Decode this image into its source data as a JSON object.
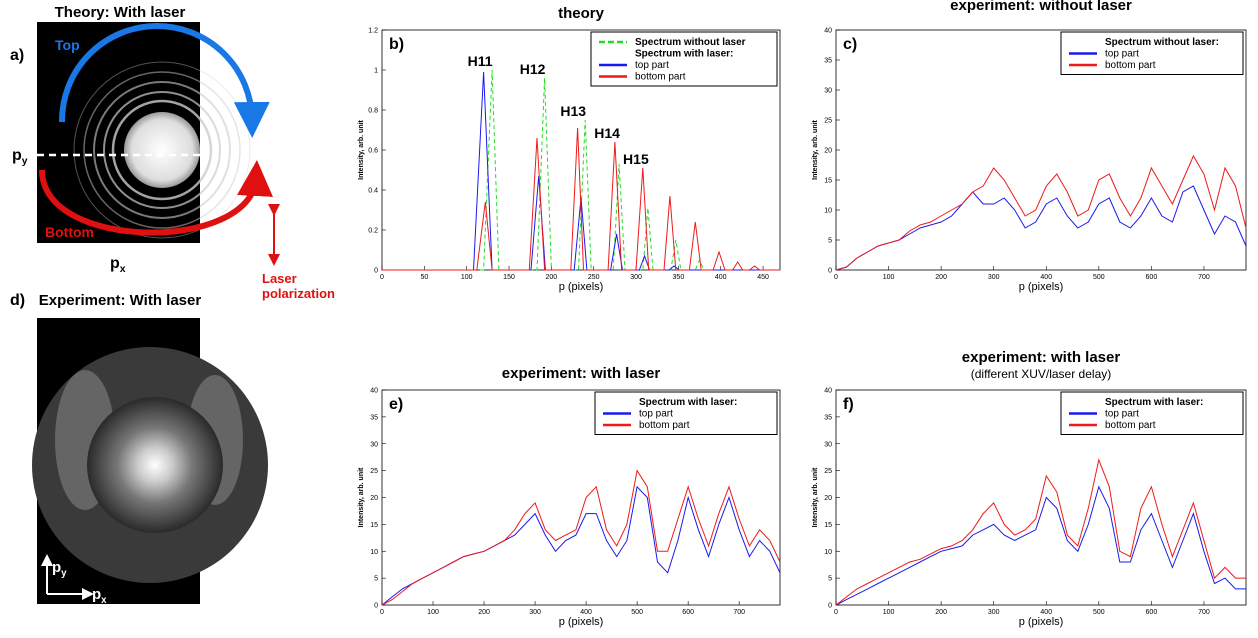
{
  "images": [
    {
      "label": "a)",
      "title": "Theory: With laser",
      "top": "Top",
      "bottom": "Bottom",
      "py": {
        "base": "p",
        "sub": "y"
      },
      "px": {
        "base": "p",
        "sub": "x"
      },
      "polarization": [
        "Laser",
        "polarization"
      ]
    },
    {
      "label": "d)",
      "title": "Experiment: With laser",
      "py": {
        "base": "p",
        "sub": "y"
      },
      "px": {
        "base": "p",
        "sub": "x"
      }
    }
  ],
  "chart_data": [
    {
      "type": "line",
      "panel_label": "b)",
      "title": "theory",
      "xlabel": "p (pixels)",
      "ylabel": "Intensity, arb. unit",
      "xlim": [
        0,
        470
      ],
      "xticks": [
        0,
        50,
        100,
        150,
        200,
        250,
        300,
        350,
        400,
        450
      ],
      "ylim": [
        0,
        1.2
      ],
      "yticks": [
        0,
        0.2,
        0.4,
        0.6,
        0.8,
        1,
        1.2
      ],
      "legend_title": "Spectrum with laser:",
      "annotations": [
        "H11",
        "H12",
        "H13",
        "H14",
        "H15"
      ],
      "series": [
        {
          "name": "Spectrum without laser",
          "color": "#22dd22",
          "linestyle": "dashed",
          "x": [
            0,
            120,
            130,
            138,
            183,
            192,
            200,
            232,
            240,
            247,
            273,
            280,
            287,
            308,
            314,
            320,
            341,
            347,
            353,
            370,
            375,
            380,
            470
          ],
          "values": [
            0,
            0,
            1.0,
            0,
            0,
            0.96,
            0,
            0,
            0.75,
            0,
            0,
            0.53,
            0,
            0,
            0.31,
            0,
            0,
            0.15,
            0,
            0,
            0.05,
            0,
            0
          ]
        },
        {
          "name": "top part",
          "color": "#1a1aee",
          "linestyle": "solid",
          "x": [
            0,
            108,
            120,
            130,
            176,
            185,
            193,
            227,
            235,
            242,
            270,
            277,
            284,
            304,
            310,
            316,
            339,
            345,
            351,
            470
          ],
          "values": [
            0,
            0,
            0.99,
            0,
            0,
            0.47,
            0,
            0,
            0.36,
            0,
            0,
            0.18,
            0,
            0,
            0.07,
            0,
            0,
            0.02,
            0,
            0
          ]
        },
        {
          "name": "bottom part",
          "color": "#ee1a1a",
          "linestyle": "solid",
          "x": [
            0,
            112,
            122,
            130,
            174,
            183,
            192,
            223,
            231,
            238,
            267,
            275,
            283,
            300,
            308,
            315,
            333,
            340,
            347,
            363,
            370,
            377,
            391,
            398,
            405,
            414,
            420,
            426,
            434,
            440,
            446,
            470
          ],
          "values": [
            0,
            0,
            0.34,
            0,
            0,
            0.66,
            0,
            0,
            0.71,
            0,
            0,
            0.64,
            0,
            0,
            0.51,
            0,
            0,
            0.37,
            0,
            0,
            0.24,
            0,
            0,
            0.09,
            0,
            0,
            0.04,
            0,
            0,
            0.02,
            0,
            0
          ]
        }
      ]
    },
    {
      "type": "line",
      "panel_label": "c)",
      "title": "experiment: without laser",
      "xlabel": "p (pixels)",
      "ylabel": "Intensity, arb. unit",
      "xlim": [
        0,
        780
      ],
      "xticks": [
        0,
        100,
        200,
        300,
        400,
        500,
        600,
        700
      ],
      "ylim": [
        0,
        40
      ],
      "yticks": [
        0,
        5,
        10,
        15,
        20,
        25,
        30,
        35,
        40
      ],
      "legend_title": "Spectrum without laser:",
      "series": [
        {
          "name": "top part",
          "color": "#1a1aee",
          "linestyle": "solid",
          "x": [
            0,
            20,
            40,
            60,
            80,
            100,
            120,
            140,
            160,
            180,
            200,
            220,
            240,
            260,
            280,
            300,
            320,
            340,
            360,
            380,
            400,
            420,
            440,
            460,
            480,
            500,
            520,
            540,
            560,
            580,
            600,
            620,
            640,
            660,
            680,
            700,
            720,
            740,
            760,
            780
          ],
          "values": [
            0,
            0.5,
            2,
            3,
            4,
            4.5,
            5,
            6,
            7,
            7.5,
            8,
            9,
            11,
            13,
            11,
            11,
            12,
            10,
            7,
            8,
            11,
            12,
            9,
            7,
            8,
            11,
            12,
            8,
            7,
            9,
            12,
            9,
            8,
            13,
            14,
            10,
            6,
            9,
            8,
            4
          ]
        },
        {
          "name": "bottom part",
          "color": "#ee1a1a",
          "linestyle": "solid",
          "x": [
            0,
            20,
            40,
            60,
            80,
            100,
            120,
            140,
            160,
            180,
            200,
            220,
            240,
            260,
            280,
            300,
            320,
            340,
            360,
            380,
            400,
            420,
            440,
            460,
            480,
            500,
            520,
            540,
            560,
            580,
            600,
            620,
            640,
            660,
            680,
            700,
            720,
            740,
            760,
            780
          ],
          "values": [
            0,
            0.5,
            2,
            3,
            4,
            4.5,
            5,
            6.5,
            7.5,
            8,
            9,
            10,
            11,
            13,
            14,
            17,
            15,
            12,
            9,
            10,
            14,
            16,
            13,
            9,
            10,
            15,
            16,
            12,
            9,
            12,
            17,
            14,
            11,
            15,
            19,
            16,
            10,
            17,
            14,
            7
          ]
        }
      ]
    },
    {
      "type": "line",
      "panel_label": "e)",
      "title": "experiment: with laser",
      "xlabel": "p (pixels)",
      "ylabel": "Intensity, arb. unit",
      "xlim": [
        0,
        780
      ],
      "xticks": [
        0,
        100,
        200,
        300,
        400,
        500,
        600,
        700
      ],
      "ylim": [
        0,
        40
      ],
      "yticks": [
        0,
        5,
        10,
        15,
        20,
        25,
        30,
        35,
        40
      ],
      "legend_title": "Spectrum with laser:",
      "series": [
        {
          "name": "top part",
          "color": "#1a1aee",
          "linestyle": "solid",
          "x": [
            0,
            20,
            40,
            60,
            80,
            100,
            120,
            140,
            160,
            180,
            200,
            220,
            240,
            260,
            280,
            300,
            320,
            340,
            360,
            380,
            400,
            420,
            440,
            460,
            480,
            500,
            520,
            540,
            560,
            580,
            600,
            620,
            640,
            660,
            680,
            700,
            720,
            740,
            760,
            780
          ],
          "values": [
            0,
            1.5,
            3,
            4,
            5,
            6,
            7,
            8,
            9,
            9.5,
            10,
            11,
            12,
            13,
            15,
            17,
            13,
            10,
            12,
            13,
            17,
            17,
            12,
            9,
            12,
            22,
            20,
            8,
            6,
            12,
            20,
            14,
            9,
            15,
            20,
            14,
            9,
            12,
            10,
            6
          ]
        },
        {
          "name": "bottom part",
          "color": "#ee1a1a",
          "linestyle": "solid",
          "x": [
            0,
            20,
            40,
            60,
            80,
            100,
            120,
            140,
            160,
            180,
            200,
            220,
            240,
            260,
            280,
            300,
            320,
            340,
            360,
            380,
            400,
            420,
            440,
            460,
            480,
            500,
            520,
            540,
            560,
            580,
            600,
            620,
            640,
            660,
            680,
            700,
            720,
            740,
            760,
            780
          ],
          "values": [
            0,
            1,
            2.5,
            4,
            5,
            6,
            7,
            8,
            9,
            9.5,
            10,
            11,
            12,
            14,
            17,
            19,
            14,
            12,
            13,
            14,
            20,
            22,
            14,
            11,
            15,
            25,
            22,
            10,
            10,
            16,
            22,
            16,
            11,
            17,
            22,
            16,
            11,
            14,
            12,
            8
          ]
        }
      ]
    },
    {
      "type": "line",
      "panel_label": "f)",
      "title": "experiment: with laser",
      "subtitle": "(different XUV/laser delay)",
      "xlabel": "p (pixels)",
      "ylabel": "Intensity, arb. unit",
      "xlim": [
        0,
        780
      ],
      "xticks": [
        0,
        100,
        200,
        300,
        400,
        500,
        600,
        700
      ],
      "ylim": [
        0,
        40
      ],
      "yticks": [
        0,
        5,
        10,
        15,
        20,
        25,
        30,
        35,
        40
      ],
      "legend_title": "Spectrum with laser:",
      "series": [
        {
          "name": "top part",
          "color": "#1a1aee",
          "linestyle": "solid",
          "x": [
            0,
            20,
            40,
            60,
            80,
            100,
            120,
            140,
            160,
            180,
            200,
            220,
            240,
            260,
            280,
            300,
            320,
            340,
            360,
            380,
            400,
            420,
            440,
            460,
            480,
            500,
            520,
            540,
            560,
            580,
            600,
            620,
            640,
            660,
            680,
            700,
            720,
            740,
            760,
            780
          ],
          "values": [
            0,
            1,
            2,
            3,
            4,
            5,
            6,
            7,
            8,
            9,
            10,
            10.5,
            11,
            13,
            14,
            15,
            13,
            12,
            13,
            14,
            20,
            18,
            12,
            10,
            15,
            22,
            18,
            8,
            8,
            14,
            17,
            12,
            7,
            12,
            17,
            10,
            4,
            5,
            3,
            3
          ]
        },
        {
          "name": "bottom part",
          "color": "#ee1a1a",
          "linestyle": "solid",
          "x": [
            0,
            20,
            40,
            60,
            80,
            100,
            120,
            140,
            160,
            180,
            200,
            220,
            240,
            260,
            280,
            300,
            320,
            340,
            360,
            380,
            400,
            420,
            440,
            460,
            480,
            500,
            520,
            540,
            560,
            580,
            600,
            620,
            640,
            660,
            680,
            700,
            720,
            740,
            760,
            780
          ],
          "values": [
            0,
            1.5,
            3,
            4,
            5,
            6,
            7,
            8,
            8.5,
            9.5,
            10.5,
            11,
            12,
            14,
            17,
            19,
            15,
            13,
            14,
            16,
            24,
            21,
            13,
            11,
            18,
            27,
            22,
            10,
            9,
            18,
            22,
            15,
            9,
            14,
            19,
            12,
            5,
            7,
            5,
            5
          ]
        }
      ]
    }
  ]
}
